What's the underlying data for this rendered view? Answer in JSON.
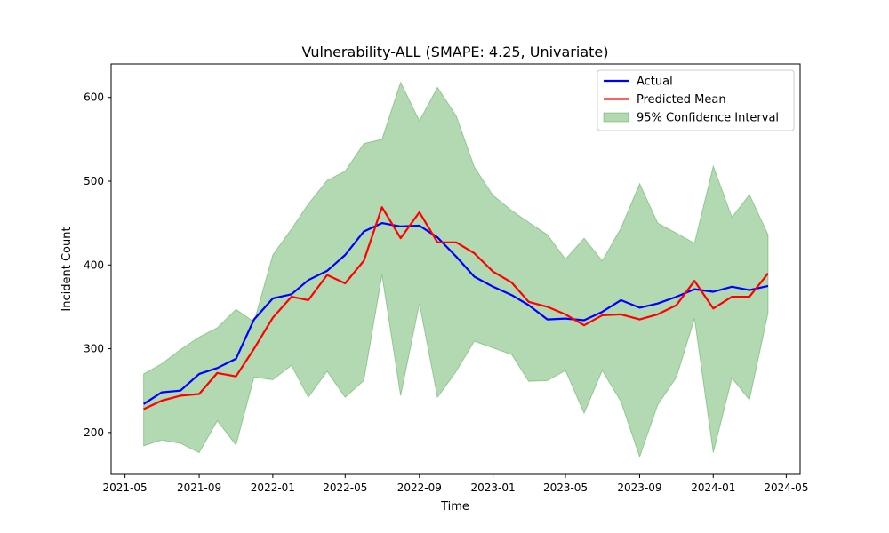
{
  "chart_data": {
    "type": "line",
    "title": "Vulnerability-ALL (SMAPE: 4.25, Univariate)",
    "xlabel": "Time",
    "ylabel": "Incident Count",
    "x_ticks": [
      "2021-05",
      "2021-09",
      "2022-01",
      "2022-05",
      "2022-09",
      "2023-01",
      "2023-05",
      "2023-09",
      "2024-01",
      "2024-05"
    ],
    "y_ticks": [
      200,
      300,
      400,
      500,
      600
    ],
    "xlim": [
      "2021-04-08",
      "2024-05-24"
    ],
    "ylim": [
      150,
      640
    ],
    "grid": false,
    "legend": "upper right",
    "x": [
      "2021-06-01",
      "2021-07-01",
      "2021-08-01",
      "2021-09-01",
      "2021-10-01",
      "2021-11-01",
      "2021-12-01",
      "2022-01-01",
      "2022-02-01",
      "2022-03-01",
      "2022-04-01",
      "2022-05-01",
      "2022-06-01",
      "2022-07-01",
      "2022-08-01",
      "2022-09-01",
      "2022-10-01",
      "2022-11-01",
      "2022-12-01",
      "2023-01-01",
      "2023-02-01",
      "2023-03-01",
      "2023-04-01",
      "2023-05-01",
      "2023-06-01",
      "2023-07-01",
      "2023-08-01",
      "2023-09-01",
      "2023-10-01",
      "2023-11-01",
      "2023-12-01",
      "2024-01-01",
      "2024-02-01",
      "2024-03-01",
      "2024-04-01"
    ],
    "series": [
      {
        "name": "Actual",
        "color": "#0000ff",
        "values": [
          234,
          248,
          250,
          270,
          277,
          288,
          335,
          360,
          365,
          382,
          393,
          412,
          440,
          450,
          446,
          447,
          433,
          410,
          386,
          374,
          364,
          352,
          335,
          336,
          334,
          344,
          358,
          349,
          354,
          362,
          371,
          368,
          374,
          370,
          375
        ]
      },
      {
        "name": "Predicted Mean",
        "color": "#ff0000",
        "values": [
          228,
          238,
          244,
          246,
          271,
          267,
          300,
          337,
          362,
          358,
          388,
          378,
          405,
          469,
          432,
          463,
          427,
          427,
          414,
          392,
          379,
          356,
          350,
          341,
          328,
          340,
          341,
          335,
          341,
          352,
          381,
          348,
          362,
          362,
          390
        ]
      }
    ],
    "band": {
      "name": "95% Confidence Interval",
      "color": "#008000",
      "upper": [
        270,
        282,
        299,
        314,
        325,
        347,
        332,
        412,
        443,
        473,
        501,
        512,
        545,
        550,
        618,
        572,
        612,
        578,
        517,
        483,
        465,
        451,
        436,
        407,
        432,
        405,
        444,
        497,
        450,
        438,
        426,
        518,
        457,
        484,
        436
      ],
      "lower": [
        184,
        191,
        187,
        176,
        214,
        185,
        266,
        263,
        280,
        242,
        273,
        242,
        262,
        388,
        244,
        354,
        242,
        273,
        309,
        301,
        293,
        261,
        262,
        274,
        223,
        274,
        237,
        171,
        233,
        266,
        336,
        176,
        265,
        239,
        343
      ]
    }
  }
}
